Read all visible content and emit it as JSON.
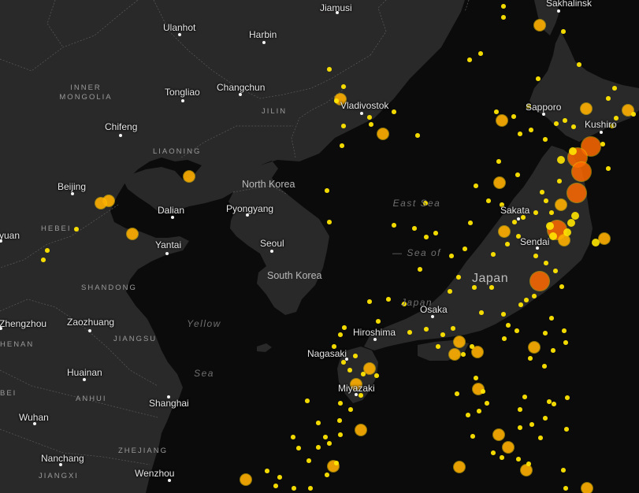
{
  "map": {
    "colors": {
      "land": "#2a2929",
      "water": "#0b0b0b",
      "borders": "#5a5a5a",
      "small_quake": "#ffe600",
      "medium_quake": "#ffb000",
      "large_quake": "#ff6a00"
    },
    "labels": {
      "sakhalinsk": "Sakhalinsk",
      "jiamusi": "Jiamusi",
      "ulanhot": "Ulanhot",
      "harbin": "Harbin",
      "inner_mongolia_1": "INNER",
      "inner_mongolia_2": "MONGOLIA",
      "tongliao": "Tongliao",
      "changchun": "Changchun",
      "vladivostok": "Vladivostok",
      "sapporo": "Sapporo",
      "kushiro": "Kushiro",
      "jilin": "JILIN",
      "chifeng": "Chifeng",
      "liaoning": "LIAONING",
      "east_sea_1": "East Sea",
      "east_sea_2": "— Sea of",
      "east_sea_3": "Japan",
      "beijing": "Beijing",
      "north_korea": "North Korea",
      "dalian": "Dalian",
      "pyongyang": "Pyongyang",
      "sakata": "Sakata",
      "hebei": "HEBEI",
      "yuan": "yuan",
      "yantai": "Yantai",
      "seoul": "Seoul",
      "sendai": "Sendai",
      "japan": "Japan",
      "south_korea": "South Korea",
      "shandong": "SHANDONG",
      "yellow_sea_1": "Yellow",
      "yellow_sea_2": "Sea",
      "osaka": "Osaka",
      "zhengzhou": "Zhengzhou",
      "zaozhuang": "Zaozhuang",
      "hiroshima": "Hiroshima",
      "henan": "HENAN",
      "jiangsu": "JIANGSU",
      "nagasaki": "Nagasaki",
      "huainan": "Huainan",
      "miyazaki": "Miyazaki",
      "bei": "BEI",
      "anhui": "ANHUI",
      "shanghai": "Shanghai",
      "wuhan": "Wuhan",
      "zhejiang": "ZHEJIANG",
      "nanchang": "Nanchang",
      "jiangxi": "JIANGXI",
      "wenzhou": "Wenzhou"
    }
  }
}
